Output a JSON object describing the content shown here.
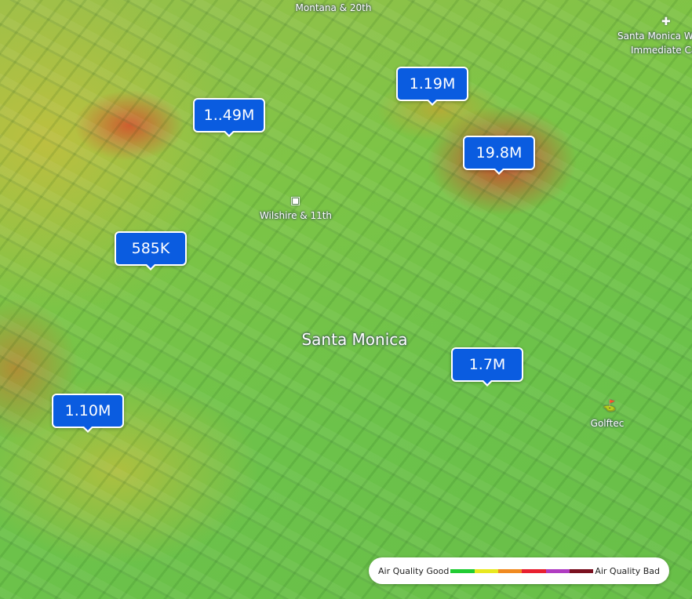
{
  "places": [
    {
      "label": "Montana & 20th"
    },
    {
      "label": "Santa Monica Wil"
    },
    {
      "label": "Immediate Ca"
    },
    {
      "label": "Wilshire & 11th"
    },
    {
      "label": "Santa Monica"
    },
    {
      "label": "Golftec"
    }
  ],
  "markers": [
    {
      "label": "1.19M"
    },
    {
      "label": "1..49M"
    },
    {
      "label": "19.8M"
    },
    {
      "label": "585K"
    },
    {
      "label": "1.7M"
    },
    {
      "label": "1.10M"
    }
  ],
  "legend": {
    "low_label": "Air Quality Good",
    "high_label": "Air Quality Bad",
    "colors": [
      "#22cc33",
      "#e8e820",
      "#f08a20",
      "#e82030",
      "#b03cc0",
      "#7a1020"
    ]
  }
}
